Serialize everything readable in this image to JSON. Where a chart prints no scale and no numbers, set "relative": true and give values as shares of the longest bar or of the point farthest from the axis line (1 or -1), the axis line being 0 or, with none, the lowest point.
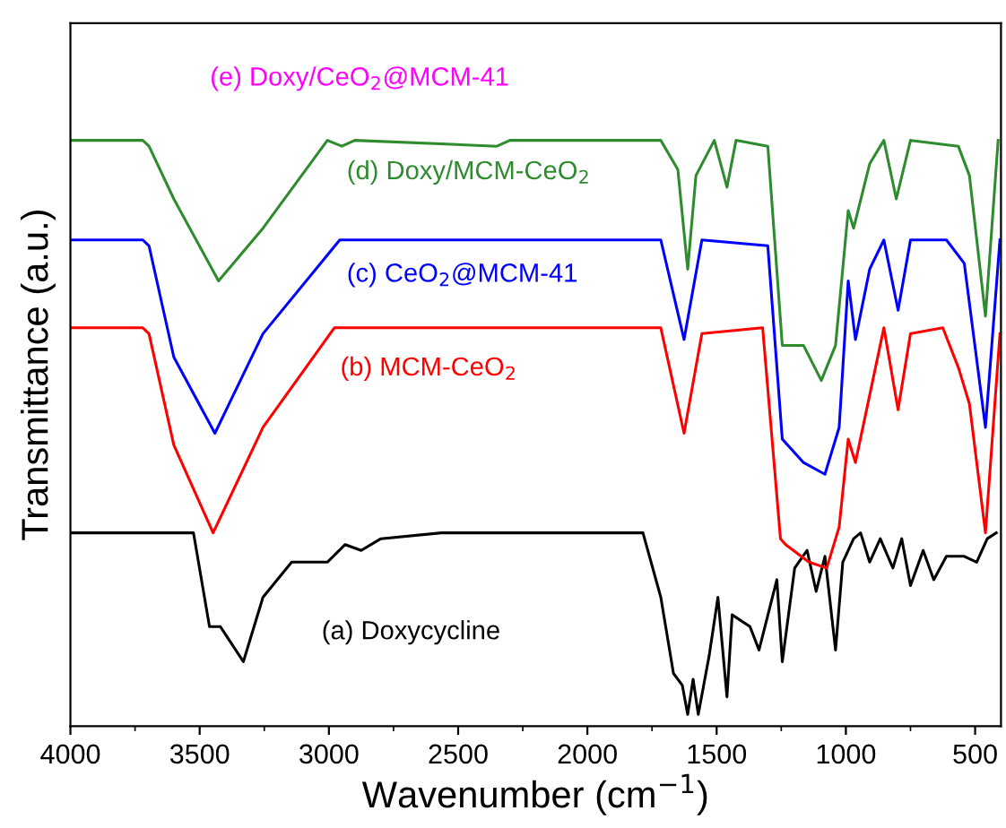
{
  "chart_data": {
    "type": "line",
    "relative": true,
    "xlabel": "Wavenumber (cm$^{−1}$)",
    "ylabel": "Transmittance (a.u.)",
    "xlim": [
      4000,
      400
    ],
    "xticks": [
      4000,
      3500,
      3000,
      2500,
      2000,
      1500,
      1000,
      500
    ],
    "annotations": [
      "(e) Doxy/CeO$_{2}$@MCM-41"
    ],
    "grid": false,
    "legend": false,
    "tick_labels": "x",
    "series": [
      {
        "name": "(a) Doxycycline",
        "color": "#000000",
        "x": [
          4000,
          3524,
          3462,
          3420,
          3331,
          3255,
          3144,
          3006,
          2937,
          2875,
          2799,
          2565,
          1785,
          1716,
          1667,
          1633,
          1612,
          1591,
          1571,
          1529,
          1495,
          1460,
          1440,
          1371,
          1336,
          1267,
          1246,
          1198,
          1150,
          1115,
          1081,
          1040,
          1012,
          970,
          943,
          908,
          867,
          818,
          784,
          750,
          701,
          660,
          611,
          542,
          494,
          453,
          418
        ],
        "values": [
          0.33,
          0.33,
          0.17,
          0.17,
          0.11,
          0.22,
          0.28,
          0.28,
          0.31,
          0.3,
          0.32,
          0.33,
          0.33,
          0.22,
          0.09,
          0.07,
          0.02,
          0.08,
          0.02,
          0.12,
          0.22,
          0.05,
          0.19,
          0.17,
          0.13,
          0.25,
          0.11,
          0.27,
          0.3,
          0.23,
          0.29,
          0.13,
          0.28,
          0.32,
          0.33,
          0.28,
          0.32,
          0.27,
          0.32,
          0.24,
          0.3,
          0.25,
          0.29,
          0.29,
          0.28,
          0.32,
          0.33
        ]
      },
      {
        "name": "(b) MCM-CeO$_{2}$",
        "color": "#ff0000",
        "x": [
          4000,
          3720,
          3696,
          3600,
          3448,
          3255,
          2979,
          1716,
          1626,
          1557,
          1322,
          1253,
          1233,
          1143,
          1074,
          1026,
          991,
          963,
          853,
          798,
          750,
          625,
          563,
          522,
          460,
          404
        ],
        "values": [
          0.68,
          0.68,
          0.67,
          0.48,
          0.33,
          0.51,
          0.68,
          0.68,
          0.5,
          0.67,
          0.68,
          0.32,
          0.31,
          0.28,
          0.27,
          0.34,
          0.49,
          0.45,
          0.68,
          0.54,
          0.67,
          0.68,
          0.61,
          0.55,
          0.33,
          0.67
        ]
      },
      {
        "name": "(c) CeO$_{2}$@MCM-41",
        "color": "#0000ff",
        "x": [
          4000,
          3720,
          3696,
          3600,
          3441,
          3255,
          2958,
          1716,
          1626,
          1557,
          1302,
          1246,
          1164,
          1081,
          1026,
          991,
          963,
          908,
          853,
          798,
          750,
          611,
          542,
          460,
          404
        ],
        "values": [
          0.83,
          0.83,
          0.82,
          0.63,
          0.5,
          0.67,
          0.83,
          0.83,
          0.66,
          0.83,
          0.82,
          0.49,
          0.45,
          0.43,
          0.51,
          0.76,
          0.66,
          0.78,
          0.83,
          0.71,
          0.83,
          0.83,
          0.79,
          0.51,
          0.83
        ]
      },
      {
        "name": "(d) Doxy/MCM-CeO$_{2}$",
        "color": "#2e8b2e",
        "x": [
          4000,
          3720,
          3696,
          3600,
          3427,
          3255,
          3006,
          2950,
          2900,
          2350,
          2300,
          1716,
          1650,
          1612,
          1580,
          1509,
          1460,
          1425,
          1302,
          1246,
          1164,
          1095,
          1040,
          991,
          970,
          908,
          853,
          805,
          750,
          565,
          522,
          460,
          411
        ],
        "values": [
          1.0,
          1.0,
          0.99,
          0.9,
          0.76,
          0.85,
          1.0,
          0.99,
          1.0,
          0.99,
          1.0,
          1.0,
          0.95,
          0.78,
          0.94,
          1.0,
          0.92,
          1.0,
          0.99,
          0.65,
          0.65,
          0.59,
          0.65,
          0.88,
          0.85,
          0.96,
          1.0,
          0.9,
          1.0,
          0.99,
          0.94,
          0.7,
          1.0
        ]
      }
    ]
  }
}
